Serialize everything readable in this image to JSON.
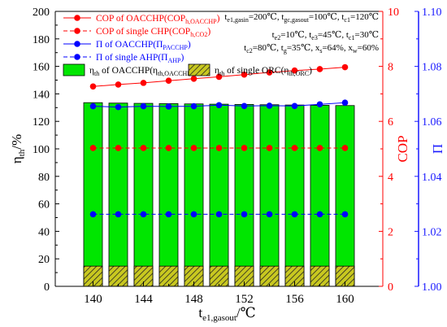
{
  "chart_data": {
    "type": "bar",
    "x": [
      140,
      142,
      144,
      146,
      148,
      150,
      152,
      154,
      156,
      158,
      160
    ],
    "x_ticks": [
      "140",
      "144",
      "148",
      "152",
      "156",
      "160"
    ],
    "xlim": [
      137,
      163
    ],
    "xlabel": {
      "base": "t",
      "sub": "e1,gasout",
      "unit": "/℃"
    },
    "ylabel_left": {
      "base": "η",
      "sub": "th",
      "unit": "/%"
    },
    "ylabel_right1": "COP",
    "ylabel_right2": "Π",
    "ylim_left": [
      0,
      200
    ],
    "yticks_left": [
      "0",
      "20",
      "40",
      "60",
      "80",
      "100",
      "120",
      "140",
      "160",
      "180",
      "200"
    ],
    "ylim_right1": [
      0,
      10
    ],
    "yticks_right1": [
      "0",
      "2",
      "4",
      "6",
      "8",
      "10"
    ],
    "ylim_right2": [
      1.0,
      1.1
    ],
    "yticks_right2": [
      "1.00",
      "1.02",
      "1.04",
      "1.06",
      "1.08",
      "1.10"
    ],
    "colors": {
      "cop_red": "#ff0000",
      "pi_blue": "#0000ff",
      "bar_green": "#00e600",
      "bar_orc": "#c8c820",
      "axis_right2": "#1a1aff"
    },
    "series": [
      {
        "key": "eta_oacchp",
        "axis": "left",
        "kind": "bar",
        "values": [
          133.6,
          133.3,
          133.1,
          132.9,
          132.7,
          132.5,
          132.3,
          132.1,
          131.9,
          131.7,
          131.5
        ]
      },
      {
        "key": "eta_orc",
        "axis": "left",
        "kind": "bar",
        "values": [
          14.7,
          14.7,
          14.7,
          14.7,
          14.7,
          14.7,
          14.7,
          14.7,
          14.7,
          14.7,
          14.7
        ]
      },
      {
        "key": "cop_oacchp",
        "axis": "right1",
        "kind": "line",
        "values": [
          7.27,
          7.34,
          7.4,
          7.48,
          7.55,
          7.62,
          7.7,
          7.78,
          7.85,
          7.9,
          7.97
        ]
      },
      {
        "key": "cop_chp",
        "axis": "right1",
        "kind": "line",
        "values": [
          5.03,
          5.03,
          5.03,
          5.03,
          5.03,
          5.03,
          5.03,
          5.03,
          5.03,
          5.03,
          5.03
        ]
      },
      {
        "key": "pi_oacchp",
        "axis": "right2",
        "kind": "line",
        "values": [
          1.0655,
          1.0652,
          1.0655,
          1.0654,
          1.0655,
          1.0659,
          1.0656,
          1.0657,
          1.0656,
          1.0662,
          1.0668
        ]
      },
      {
        "key": "pi_ahp",
        "axis": "right2",
        "kind": "line",
        "values": [
          1.0262,
          1.0262,
          1.0262,
          1.0262,
          1.0262,
          1.0262,
          1.0262,
          1.0262,
          1.0262,
          1.0262,
          1.0262
        ]
      }
    ],
    "legend": [
      {
        "key": "cop_oacchp",
        "style": "solid-red-dot",
        "pre": "COP of OACCHP(COP",
        "sub": "h,OACCHP",
        "post": ")"
      },
      {
        "key": "cop_chp",
        "style": "dash-red-dot",
        "pre": "COP of single CHP(COP",
        "sub": "h,CO2",
        "post": ")"
      },
      {
        "key": "pi_oacchp",
        "style": "solid-blue-dot",
        "pre": "Π of  OACCHP(Π",
        "sub": "PACCHP",
        "post": ")"
      },
      {
        "key": "pi_ahp",
        "style": "dash-blue-dot",
        "pre": "Π of single AHP(Π",
        "sub": "AHP",
        "post": ")"
      },
      {
        "key": "eta_oacchp",
        "style": "green-box",
        "pre": "η",
        "sub": "th",
        "post": " of  OACCHP(η",
        "sub2": "th,OACCHP",
        "post2": ")"
      },
      {
        "key": "eta_orc",
        "style": "hatch-box",
        "pre": "η",
        "sub": "th",
        "post": " of  single ORC(η",
        "sub2": "th,ORC",
        "post2": ")"
      }
    ],
    "conditions": [
      [
        {
          "t": "t"
        },
        {
          "t": "e1,gasin",
          "sub": true
        },
        {
          "t": "=200℃,  t"
        },
        {
          "t": "gc,gasout",
          "sub": true
        },
        {
          "t": "=100℃,  t"
        },
        {
          "t": "c1",
          "sub": true
        },
        {
          "t": "=120℃"
        }
      ],
      [
        {
          "t": "t"
        },
        {
          "t": "e2",
          "sub": true
        },
        {
          "t": "=10℃,  t"
        },
        {
          "t": "e3",
          "sub": true
        },
        {
          "t": "=45℃,  t"
        },
        {
          "t": "c1",
          "sub": true
        },
        {
          "t": "=30℃"
        }
      ],
      [
        {
          "t": "t"
        },
        {
          "t": "c2",
          "sub": true
        },
        {
          "t": "=80℃,  t"
        },
        {
          "t": "g",
          "sub": true
        },
        {
          "t": "=35℃,  x"
        },
        {
          "t": "s",
          "sub": true
        },
        {
          "t": "=64%,  x"
        },
        {
          "t": "w",
          "sub": true
        },
        {
          "t": "=60%"
        }
      ]
    ]
  }
}
